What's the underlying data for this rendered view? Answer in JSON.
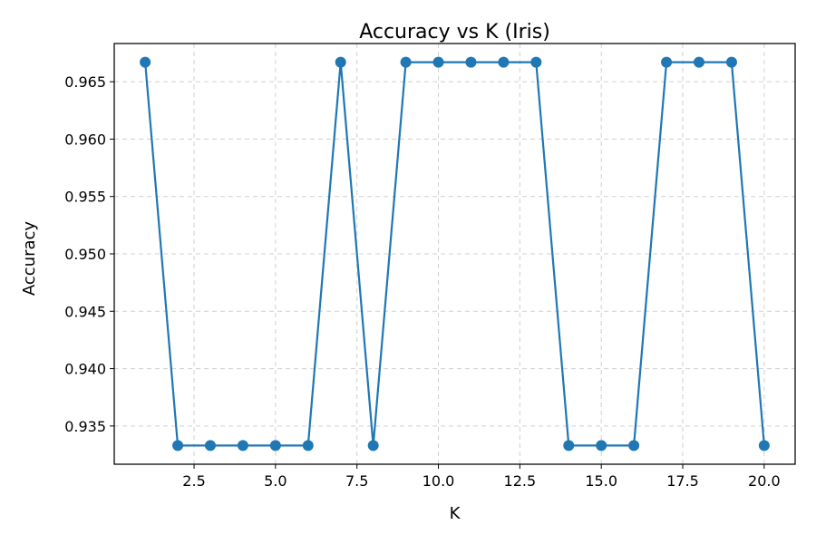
{
  "chart_data": {
    "type": "line",
    "title": "Accuracy vs K (Iris)",
    "xlabel": "K",
    "ylabel": "Accuracy",
    "xlim": [
      0.05,
      20.95
    ],
    "ylim": [
      0.93167,
      0.96833
    ],
    "xticks": [
      2.5,
      5.0,
      7.5,
      10.0,
      12.5,
      15.0,
      17.5,
      20.0
    ],
    "xtick_labels": [
      "2.5",
      "5.0",
      "7.5",
      "10.0",
      "12.5",
      "15.0",
      "17.5",
      "20.0"
    ],
    "yticks": [
      0.935,
      0.94,
      0.945,
      0.95,
      0.955,
      0.96,
      0.965
    ],
    "ytick_labels": [
      "0.935",
      "0.940",
      "0.945",
      "0.950",
      "0.955",
      "0.960",
      "0.965"
    ],
    "grid": true,
    "legend": "none",
    "color": "#1f77b4",
    "marker": "circle",
    "x": [
      1,
      2,
      3,
      4,
      5,
      6,
      7,
      8,
      9,
      10,
      11,
      12,
      13,
      14,
      15,
      16,
      17,
      18,
      19,
      20
    ],
    "values": [
      0.9667,
      0.9333,
      0.9333,
      0.9333,
      0.9333,
      0.9333,
      0.9667,
      0.9333,
      0.9667,
      0.9667,
      0.9667,
      0.9667,
      0.9667,
      0.9333,
      0.9333,
      0.9333,
      0.9667,
      0.9667,
      0.9667,
      0.9333
    ]
  }
}
